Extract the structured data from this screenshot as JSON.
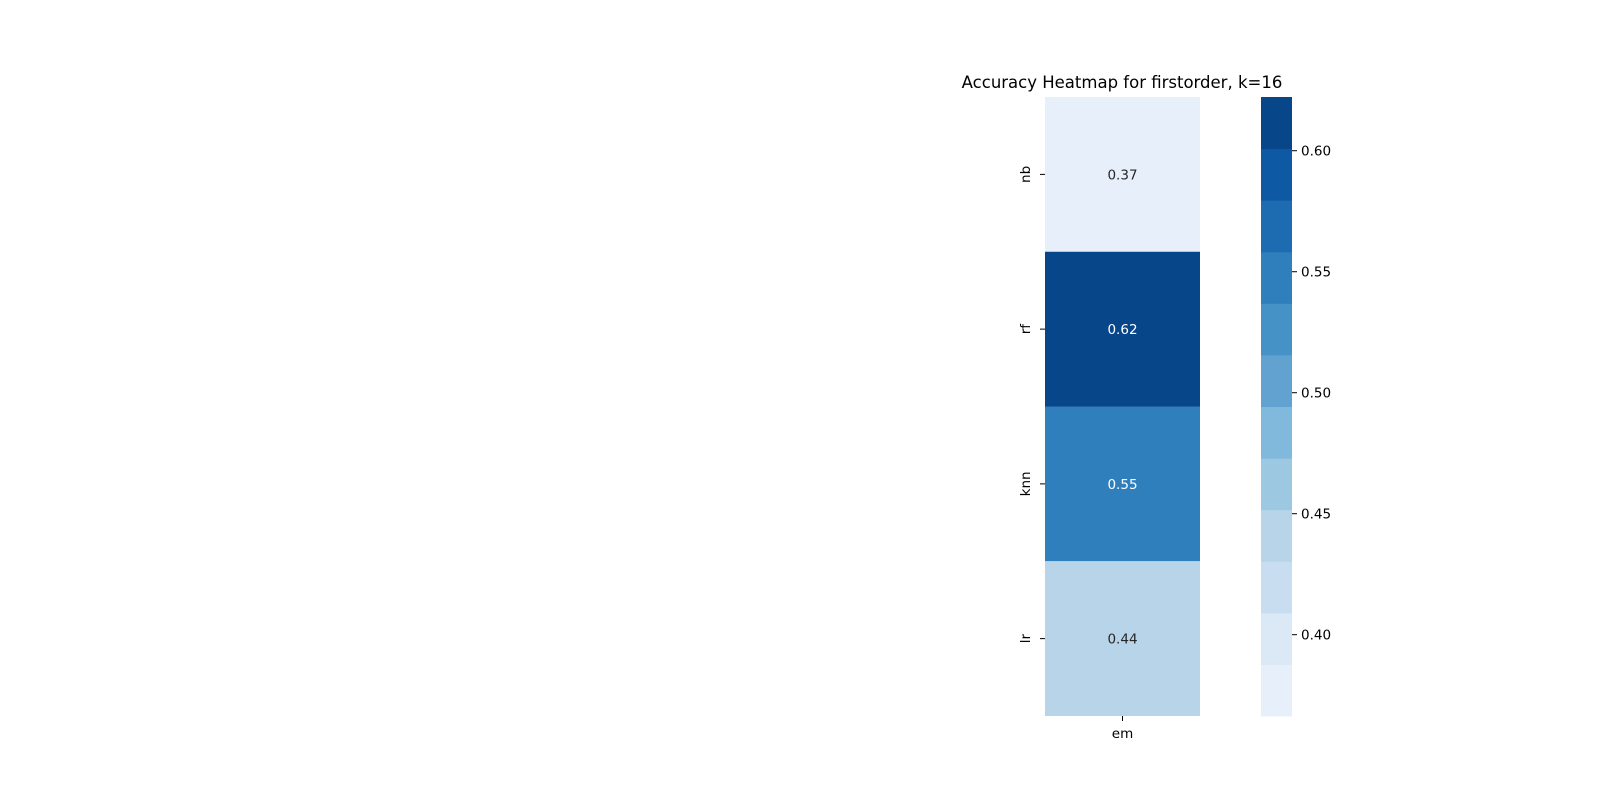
{
  "chart_data": {
    "type": "heatmap",
    "title": "Accuracy Heatmap for firstorder, k=16",
    "rows": [
      "nb",
      "rf",
      "knn",
      "lr"
    ],
    "columns": [
      "em"
    ],
    "values": [
      [
        0.37
      ],
      [
        0.62
      ],
      [
        0.55
      ],
      [
        0.44
      ]
    ],
    "value_labels": [
      [
        "0.37"
      ],
      [
        "0.62"
      ],
      [
        "0.55"
      ],
      [
        "0.44"
      ]
    ],
    "colormap": "Blues",
    "cell_colors": [
      "#e7f0fa",
      "#08468a",
      "#2f7fbc",
      "#b7d4e9"
    ],
    "label_colors": [
      "#262626",
      "#ffffff",
      "#ffffff",
      "#262626"
    ],
    "colorbar": {
      "range": [
        0.3664,
        0.6222
      ],
      "ticks": [
        0.4,
        0.45,
        0.5,
        0.55,
        0.6
      ],
      "tick_labels": [
        "0.40",
        "0.45",
        "0.50",
        "0.55",
        "0.60"
      ],
      "bands": [
        "#e7f0fa",
        "#dbe8f6",
        "#c9ddf0",
        "#b7d4e9",
        "#9dc8e1",
        "#81b9dc",
        "#62a2d0",
        "#4592c7",
        "#2f7fbc",
        "#1d6cb1",
        "#0d59a3",
        "#08468a"
      ]
    }
  }
}
